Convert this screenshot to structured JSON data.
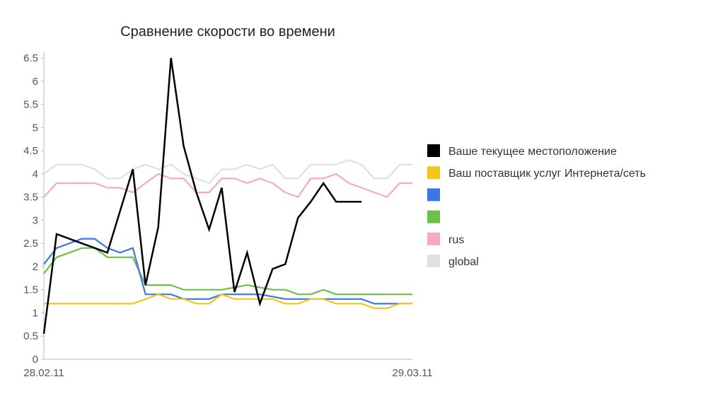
{
  "chart_data": {
    "type": "line",
    "title": "Сравнение скорости во времени",
    "xlabel": "",
    "ylabel": "",
    "x_tick_labels": [
      "28.02.11",
      "29.03.11"
    ],
    "x_tick_indices": [
      0,
      29
    ],
    "x_count": 30,
    "ylim": [
      0,
      6.5
    ],
    "y_ticks": [
      0,
      0.5,
      1,
      1.5,
      2,
      2.5,
      3,
      3.5,
      4,
      4.5,
      5,
      5.5,
      6,
      6.5
    ],
    "y_tick_labels": [
      "0",
      "0.5",
      "1",
      "1.5",
      "2",
      "2.5",
      "3",
      "3.5",
      "4",
      "4.5",
      "5",
      "5.5",
      "6",
      "6.5"
    ],
    "grid": false,
    "legend_position": "right",
    "series": [
      {
        "name": "global",
        "color": "#e0e0e0",
        "values": [
          4.0,
          4.2,
          4.2,
          4.2,
          4.1,
          3.9,
          3.9,
          4.1,
          4.2,
          4.1,
          4.2,
          4.0,
          3.9,
          3.8,
          4.1,
          4.1,
          4.2,
          4.1,
          4.2,
          3.9,
          3.9,
          4.2,
          4.2,
          4.2,
          4.3,
          4.2,
          3.9,
          3.9,
          4.2,
          4.2
        ]
      },
      {
        "name": "rus",
        "color": "#f9a8c4",
        "values": [
          3.5,
          3.8,
          3.8,
          3.8,
          3.8,
          3.7,
          3.7,
          3.6,
          3.8,
          4.0,
          3.9,
          3.9,
          3.6,
          3.6,
          3.9,
          3.9,
          3.8,
          3.9,
          3.8,
          3.6,
          3.5,
          3.9,
          3.9,
          4.0,
          3.8,
          3.7,
          3.6,
          3.5,
          3.8,
          3.8
        ]
      },
      {
        "name": "",
        "color": "#6cc04a",
        "values": [
          1.85,
          2.2,
          2.3,
          2.4,
          2.4,
          2.2,
          2.2,
          2.2,
          1.6,
          1.6,
          1.6,
          1.5,
          1.5,
          1.5,
          1.5,
          1.55,
          1.6,
          1.55,
          1.5,
          1.5,
          1.4,
          1.4,
          1.5,
          1.4,
          1.4,
          1.4,
          1.4,
          1.4,
          1.4,
          1.4
        ]
      },
      {
        "name": "",
        "color": "#3b78e7",
        "values": [
          2.05,
          2.4,
          2.5,
          2.6,
          2.6,
          2.4,
          2.3,
          2.4,
          1.4,
          1.4,
          1.4,
          1.3,
          1.3,
          1.3,
          1.4,
          1.4,
          1.4,
          1.4,
          1.35,
          1.3,
          1.3,
          1.3,
          1.3,
          1.3,
          1.3,
          1.3,
          1.2,
          1.2,
          1.2,
          1.2
        ]
      },
      {
        "name": "Ваш поставщик услуг Интернета/сеть",
        "color": "#f5c518",
        "values": [
          1.2,
          1.2,
          1.2,
          1.2,
          1.2,
          1.2,
          1.2,
          1.2,
          1.3,
          1.4,
          1.3,
          1.3,
          1.2,
          1.2,
          1.4,
          1.3,
          1.3,
          1.3,
          1.3,
          1.2,
          1.2,
          1.3,
          1.3,
          1.2,
          1.2,
          1.2,
          1.1,
          1.1,
          1.2,
          1.2
        ]
      },
      {
        "name": "Ваше текущее местоположение",
        "color": "#000000",
        "values": [
          null,
          0.55,
          2.7,
          2.6,
          2.5,
          2.4,
          2.3,
          3.2,
          4.1,
          1.6,
          2.85,
          6.5,
          4.6,
          3.6,
          2.8,
          3.7,
          1.45,
          2.3,
          1.2,
          1.95,
          2.05,
          3.05,
          3.4,
          3.8,
          3.4,
          3.4,
          3.4,
          null,
          null,
          null
        ],
        "x_offset": -1
      }
    ],
    "legend": [
      {
        "name": "Ваше текущее местоположение",
        "color": "#000000"
      },
      {
        "name": "Ваш поставщик услуг Интернета/сеть",
        "color": "#f5c518"
      },
      {
        "name": "",
        "color": "#3b78e7"
      },
      {
        "name": "",
        "color": "#6cc04a"
      },
      {
        "name": "rus",
        "color": "#f9a8c4"
      },
      {
        "name": "global",
        "color": "#e0e0e0"
      }
    ]
  }
}
